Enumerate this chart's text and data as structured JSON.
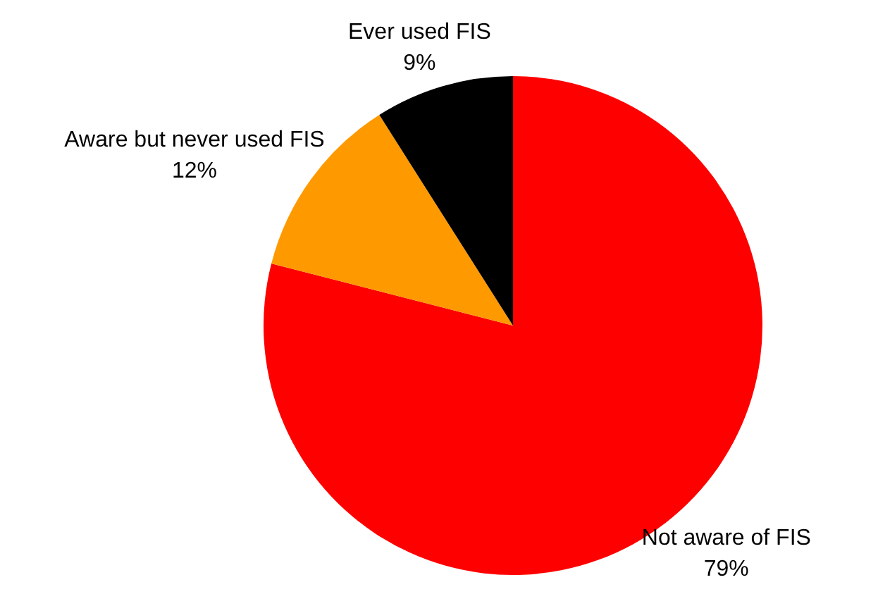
{
  "chart_data": {
    "type": "pie",
    "categories": [
      "Not aware of FIS",
      "Aware but never used FIS",
      "Ever used FIS"
    ],
    "values": [
      79,
      12,
      9
    ],
    "colors": [
      "#ff0000",
      "#ff9900",
      "#000000"
    ],
    "value_labels": [
      "79%",
      "12%",
      "9%"
    ]
  }
}
